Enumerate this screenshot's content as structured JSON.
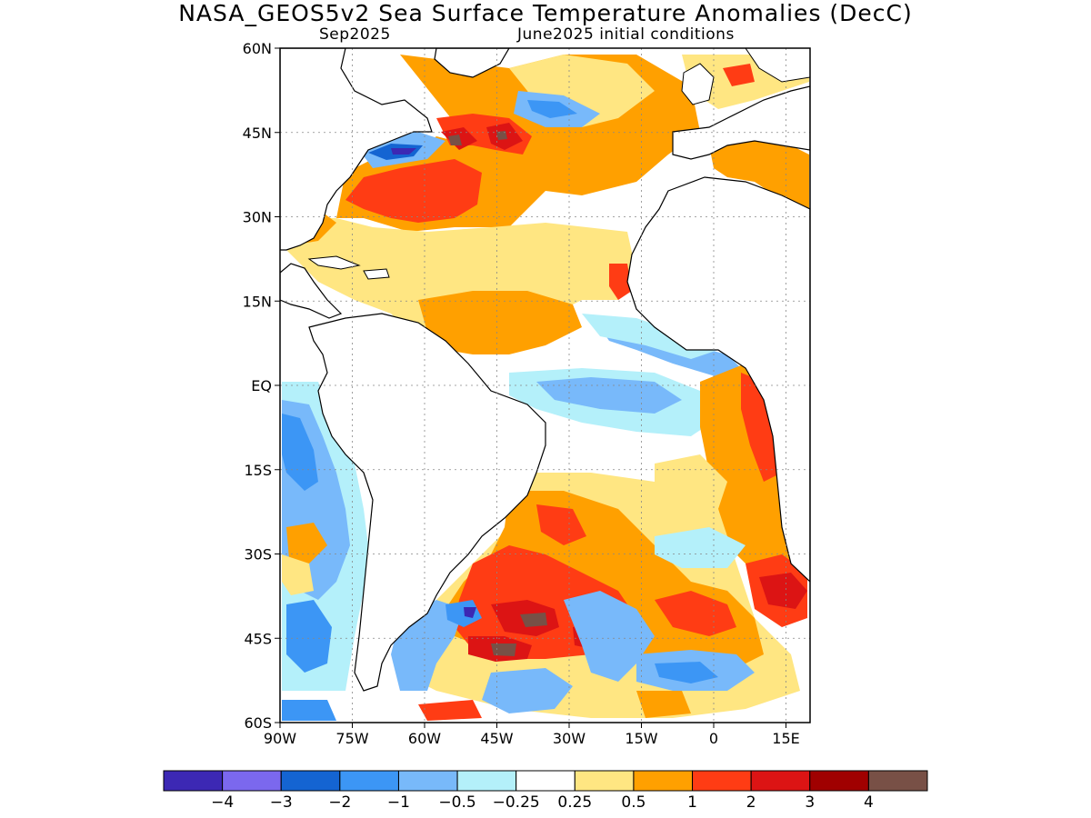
{
  "title": "NASA_GEOS5v2 Sea Surface Temperature Anomalies (DecC)",
  "subtitle_left": "Sep2025",
  "subtitle_right": "June2025 initial conditions",
  "map": {
    "lon_range": [
      -90,
      20
    ],
    "lat_range": [
      -60,
      60
    ],
    "lat_ticks": [
      {
        "value": 60,
        "label": "60N"
      },
      {
        "value": 45,
        "label": "45N"
      },
      {
        "value": 30,
        "label": "30N"
      },
      {
        "value": 15,
        "label": "15N"
      },
      {
        "value": 0,
        "label": "EQ"
      },
      {
        "value": -15,
        "label": "15S"
      },
      {
        "value": -30,
        "label": "30S"
      },
      {
        "value": -45,
        "label": "45S"
      },
      {
        "value": -60,
        "label": "60S"
      }
    ],
    "lon_ticks": [
      {
        "value": -90,
        "label": "90W"
      },
      {
        "value": -75,
        "label": "75W"
      },
      {
        "value": -60,
        "label": "60W"
      },
      {
        "value": -45,
        "label": "45W"
      },
      {
        "value": -30,
        "label": "30W"
      },
      {
        "value": -15,
        "label": "15W"
      },
      {
        "value": 0,
        "label": "0"
      },
      {
        "value": 15,
        "label": "15E"
      }
    ],
    "grid": true
  },
  "colorbar": {
    "colors": [
      "#3c28b4",
      "#7b68ee",
      "#1464d2",
      "#3c96f5",
      "#78b9fa",
      "#b4f0fa",
      "#ffffff",
      "#ffe682",
      "#ffa000",
      "#ff3c14",
      "#dc1414",
      "#a00000",
      "#785046"
    ],
    "labels": [
      "−4",
      "−3",
      "−2",
      "−1",
      "−0.5",
      "−0.25",
      "0.25",
      "0.5",
      "1",
      "2",
      "3",
      "4"
    ]
  },
  "colors": {
    "land": "#ffffff",
    "coast": "#000000",
    "ocean_neutral": "#ffffff"
  }
}
